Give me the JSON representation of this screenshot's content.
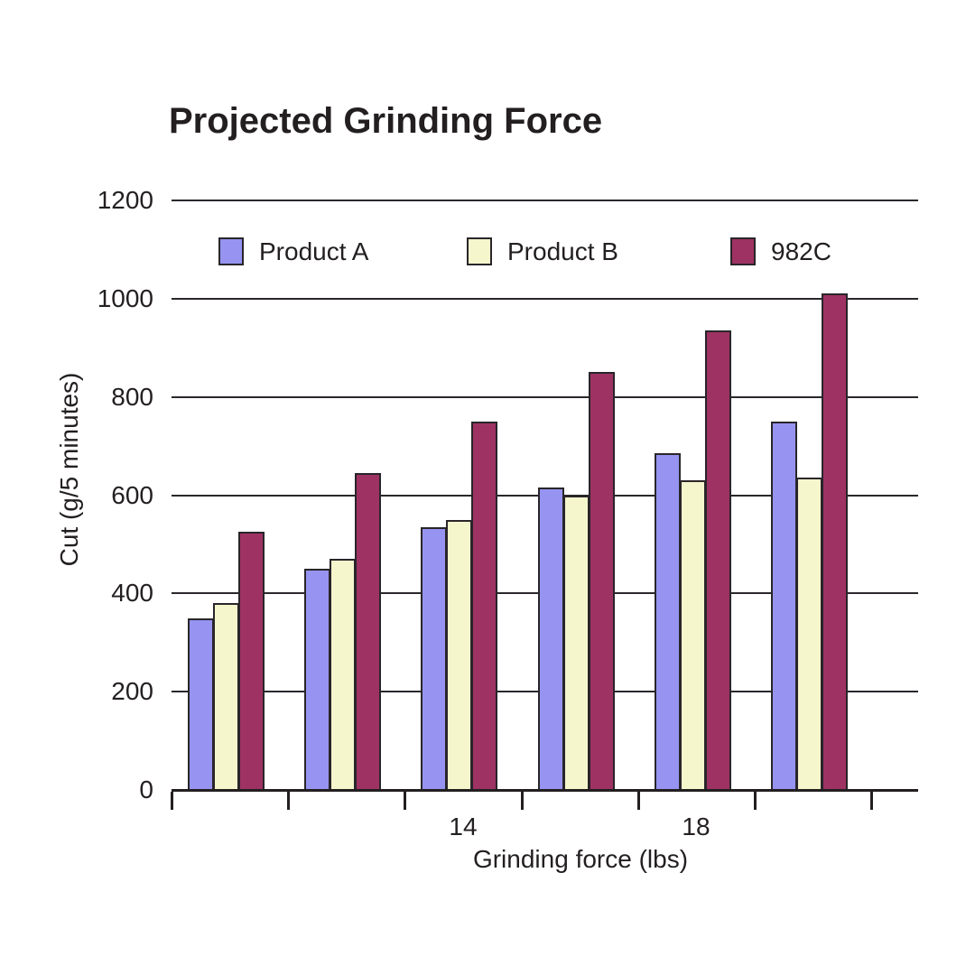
{
  "title": "Projected Grinding Force",
  "y_axis": {
    "title": "Cut (g/5 minutes)",
    "tick_labels": [
      "0",
      "200",
      "400",
      "600",
      "800",
      "1000",
      "1200"
    ]
  },
  "x_axis": {
    "title": "Grinding force (lbs)",
    "visible_tick_labels": [
      "14",
      "18"
    ]
  },
  "legend": {
    "position": "top-inside",
    "entries": [
      "Product A",
      "Product B",
      "982C"
    ]
  },
  "chart_data": {
    "type": "bar",
    "title": "Projected Grinding Force",
    "xlabel": "Grinding force (lbs)",
    "ylabel": "Cut (g/5 minutes)",
    "categories": [
      "",
      "",
      "14",
      "",
      "18",
      ""
    ],
    "series": [
      {
        "name": "Product A",
        "color": "#9694f0",
        "values": [
          350,
          450,
          535,
          615,
          685,
          750
        ]
      },
      {
        "name": "Product B",
        "color": "#f6f6cd",
        "values": [
          380,
          470,
          550,
          600,
          630,
          635
        ]
      },
      {
        "name": "982C",
        "color": "#9e3263",
        "values": [
          525,
          645,
          750,
          850,
          935,
          1010
        ]
      }
    ],
    "ylim": [
      0,
      1200
    ],
    "ytick_step": 200,
    "grid": "horizontal",
    "bar_outline_color": "#29252a",
    "axis_color": "#231f20"
  }
}
